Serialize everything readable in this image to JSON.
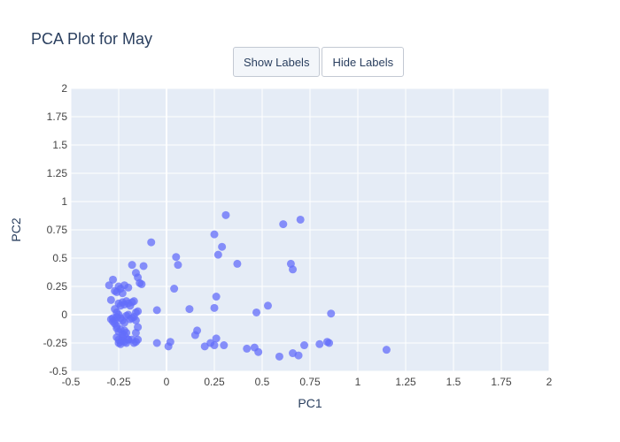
{
  "toolbar": {
    "show_labels": "Show Labels",
    "hide_labels": "Hide Labels",
    "active": "show_labels"
  },
  "chart_data": {
    "type": "scatter",
    "title": "PCA Plot for May",
    "xlabel": "PC1",
    "ylabel": "PC2",
    "xlim": [
      -0.5,
      2
    ],
    "ylim": [
      -0.5,
      2
    ],
    "xticks": [
      -0.5,
      -0.25,
      0,
      0.25,
      0.5,
      0.75,
      1,
      1.25,
      1.5,
      1.75,
      2
    ],
    "yticks": [
      -0.5,
      -0.25,
      0,
      0.25,
      0.5,
      0.75,
      1,
      1.25,
      1.5,
      1.75,
      2
    ],
    "grid": true,
    "colors": {
      "plot_bg": "#e5ecf6",
      "grid": "#ffffff",
      "marker": "#636efa",
      "text": "#2a3f5f",
      "tick": "#444444"
    },
    "x": [
      -0.28,
      -0.3,
      -0.29,
      -0.27,
      -0.26,
      -0.25,
      -0.24,
      -0.23,
      -0.22,
      -0.2,
      -0.18,
      -0.16,
      -0.15,
      -0.14,
      -0.12,
      -0.27,
      -0.26,
      -0.25,
      -0.24,
      -0.23,
      -0.22,
      -0.21,
      -0.2,
      -0.19,
      -0.18,
      -0.17,
      -0.16,
      -0.28,
      -0.27,
      -0.26,
      -0.25,
      -0.24,
      -0.23,
      -0.22,
      -0.21,
      -0.2,
      -0.19,
      -0.18,
      -0.17,
      -0.16,
      -0.15,
      -0.26,
      -0.25,
      -0.24,
      -0.23,
      -0.22,
      -0.21,
      -0.26,
      -0.25,
      -0.24,
      -0.23,
      -0.22,
      -0.2,
      -0.16,
      -0.15,
      -0.29,
      -0.28,
      -0.27,
      -0.26,
      -0.25,
      -0.24,
      -0.23,
      -0.22,
      -0.21,
      -0.2,
      -0.18,
      -0.17,
      -0.15,
      -0.16,
      -0.13,
      -0.08,
      -0.05,
      -0.05,
      0.01,
      0.02,
      0.04,
      0.05,
      0.06,
      0.12,
      0.15,
      0.16,
      0.2,
      0.23,
      0.25,
      0.25,
      0.26,
      0.26,
      0.25,
      0.27,
      0.29,
      0.3,
      0.31,
      0.37,
      0.42,
      0.46,
      0.47,
      0.48,
      0.53,
      0.59,
      0.61,
      0.65,
      0.66,
      0.66,
      0.69,
      0.7,
      0.72,
      0.8,
      0.84,
      0.85,
      0.86,
      1.15
    ],
    "y": [
      0.31,
      0.26,
      0.13,
      0.21,
      0.2,
      0.25,
      0.23,
      0.19,
      0.26,
      0.24,
      0.44,
      0.37,
      0.33,
      0.28,
      0.43,
      0.05,
      0.02,
      0.1,
      0.08,
      0.11,
      0.09,
      0.12,
      0.1,
      0.08,
      0.11,
      0.12,
      0.02,
      -0.03,
      -0.05,
      -0.02,
      0.0,
      -0.03,
      -0.05,
      -0.07,
      -0.01,
      0.0,
      -0.04,
      -0.03,
      -0.02,
      -0.05,
      0.03,
      -0.12,
      -0.15,
      -0.13,
      -0.17,
      -0.14,
      -0.16,
      -0.2,
      -0.22,
      -0.24,
      -0.2,
      -0.18,
      -0.22,
      -0.16,
      -0.11,
      -0.04,
      -0.06,
      -0.08,
      -0.1,
      -0.25,
      -0.26,
      -0.23,
      -0.24,
      -0.25,
      -0.22,
      -0.22,
      -0.25,
      -0.22,
      -0.24,
      0.27,
      0.64,
      0.04,
      -0.25,
      -0.28,
      -0.24,
      0.23,
      0.51,
      0.44,
      0.05,
      -0.18,
      -0.14,
      -0.28,
      -0.25,
      -0.27,
      0.06,
      0.16,
      -0.21,
      0.71,
      0.53,
      0.6,
      -0.27,
      0.88,
      0.45,
      -0.3,
      -0.29,
      0.02,
      -0.33,
      0.08,
      -0.37,
      0.8,
      0.45,
      0.4,
      -0.34,
      -0.36,
      0.84,
      -0.27,
      -0.26,
      -0.24,
      -0.25,
      0.01,
      -0.31
    ]
  }
}
